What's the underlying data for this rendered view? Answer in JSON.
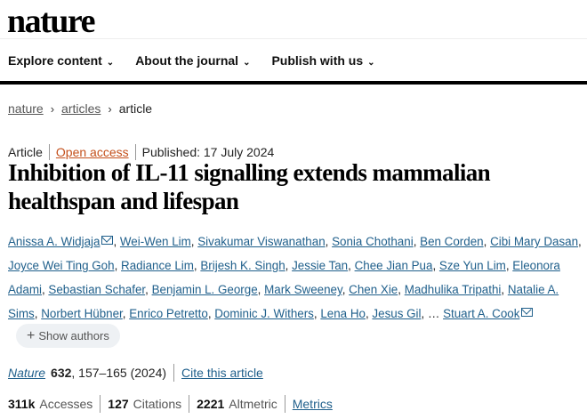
{
  "logo": "nature",
  "nav": [
    {
      "label": "Explore content"
    },
    {
      "label": "About the journal"
    },
    {
      "label": "Publish with us"
    }
  ],
  "breadcrumb": [
    {
      "label": "nature"
    },
    {
      "label": "articles"
    },
    {
      "label": "article"
    }
  ],
  "meta": {
    "type": "Article",
    "access": "Open access",
    "published": "Published: 17 July 2024"
  },
  "title": "Inhibition of IL-11 signalling extends mammalian healthspan and lifespan",
  "authors": [
    "Anissa A. Widjaja",
    "Wei-Wen Lim",
    "Sivakumar Viswanathan",
    "Sonia Chothani",
    "Ben Corden",
    "Cibi Mary Dasan",
    "Joyce Wei Ting Goh",
    "Radiance Lim",
    "Brijesh K. Singh",
    "Jessie Tan",
    "Chee Jian Pua",
    "Sze Yun Lim",
    "Eleonora Adami",
    "Sebastian Schafer",
    "Benjamin L. George",
    "Mark Sweeney",
    "Chen Xie",
    "Madhulika Tripathi",
    "Natalie A. Sims",
    "Norbert Hübner",
    "Enrico Petretto",
    "Dominic J. Withers",
    "Lena Ho",
    "Jesus Gil",
    "Stuart A. Cook"
  ],
  "ellipsis": "…",
  "show_authors": "Show authors",
  "citation": {
    "journal": "Nature",
    "volume": "632",
    "pages": ", 157–165 (2024)",
    "cite_link": "Cite this article"
  },
  "metrics": {
    "accesses": "311k",
    "accesses_label": "Accesses",
    "citations": "127",
    "citations_label": "Citations",
    "altmetric": "2221",
    "altmetric_label": "Altmetric",
    "link": "Metrics"
  },
  "colors": {
    "link": "#1f5f8b",
    "open_access": "#c4501c"
  }
}
